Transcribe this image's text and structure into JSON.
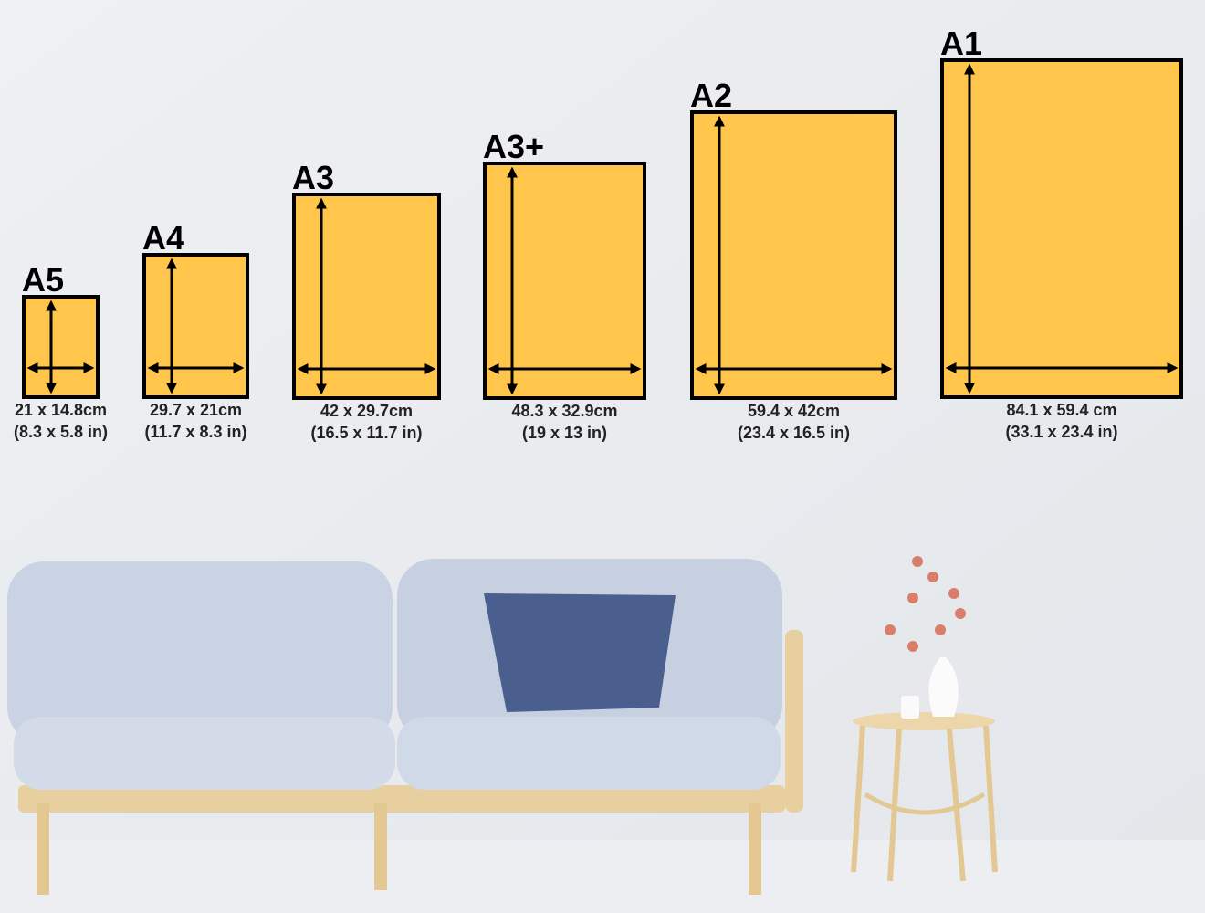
{
  "sizes": [
    {
      "name": "A5",
      "cm": "21 x 14.8cm",
      "inches": "(8.3 x 5.8 in)"
    },
    {
      "name": "A4",
      "cm": "29.7 x 21cm",
      "inches": "(11.7 x 8.3 in)"
    },
    {
      "name": "A3",
      "cm": "42 x 29.7cm",
      "inches": "(16.5 x 11.7 in)"
    },
    {
      "name": "A3+",
      "cm": "48.3 x 32.9cm",
      "inches": "(19 x 13 in)"
    },
    {
      "name": "A2",
      "cm": "59.4 x 42cm",
      "inches": "(23.4 x 16.5 in)"
    },
    {
      "name": "A1",
      "cm": "84.1 x 59.4 cm",
      "inches": "(33.1 x 23.4 in)"
    }
  ]
}
